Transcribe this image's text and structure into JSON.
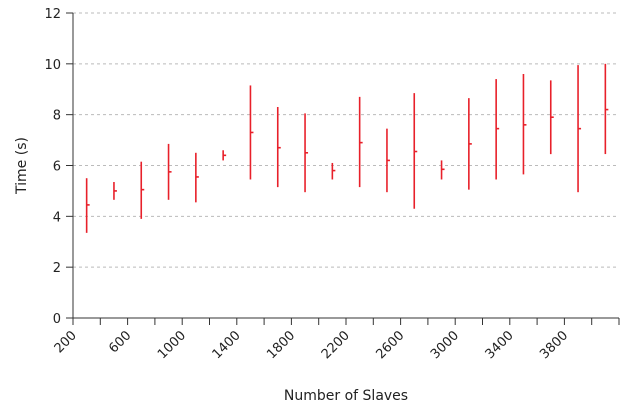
{
  "chart_data": {
    "type": "range",
    "xlabel": "Number of Slaves",
    "ylabel": "Time (s)",
    "x_tick_labels": [
      "200",
      "600",
      "1000",
      "1400",
      "1800",
      "2200",
      "2600",
      "3000",
      "3400",
      "3800"
    ],
    "y_ticks": [
      0,
      2,
      4,
      6,
      8,
      10,
      12
    ],
    "ylim": [
      0,
      12
    ],
    "grid": "horizontal dashed",
    "colors": {
      "series": "#e8202a",
      "axis": "#333333",
      "grid": "#bbbbbb"
    },
    "series": [
      {
        "values": [
          {
            "x": 300,
            "min": 3.35,
            "max": 5.5,
            "mid": 4.45
          },
          {
            "x": 500,
            "min": 4.65,
            "max": 5.35,
            "mid": 5.0
          },
          {
            "x": 700,
            "min": 3.9,
            "max": 6.15,
            "mid": 5.05
          },
          {
            "x": 900,
            "min": 4.65,
            "max": 6.85,
            "mid": 5.75
          },
          {
            "x": 1100,
            "min": 4.55,
            "max": 6.5,
            "mid": 5.55
          },
          {
            "x": 1300,
            "min": 6.2,
            "max": 6.6,
            "mid": 6.4
          },
          {
            "x": 1500,
            "min": 5.45,
            "max": 9.15,
            "mid": 7.3
          },
          {
            "x": 1700,
            "min": 5.15,
            "max": 8.3,
            "mid": 6.7
          },
          {
            "x": 1900,
            "min": 4.95,
            "max": 8.05,
            "mid": 6.5
          },
          {
            "x": 2100,
            "min": 5.45,
            "max": 6.1,
            "mid": 5.8
          },
          {
            "x": 2300,
            "min": 5.15,
            "max": 8.7,
            "mid": 6.9
          },
          {
            "x": 2500,
            "min": 4.95,
            "max": 7.45,
            "mid": 6.2
          },
          {
            "x": 2700,
            "min": 4.3,
            "max": 8.85,
            "mid": 6.55
          },
          {
            "x": 2900,
            "min": 5.45,
            "max": 6.2,
            "mid": 5.85
          },
          {
            "x": 3100,
            "min": 5.05,
            "max": 8.65,
            "mid": 6.85
          },
          {
            "x": 3300,
            "min": 5.45,
            "max": 9.4,
            "mid": 7.45
          },
          {
            "x": 3500,
            "min": 5.65,
            "max": 9.6,
            "mid": 7.6
          },
          {
            "x": 3700,
            "min": 6.45,
            "max": 9.35,
            "mid": 7.9
          },
          {
            "x": 3900,
            "min": 4.95,
            "max": 9.95,
            "mid": 7.45
          },
          {
            "x": 4100,
            "min": 6.45,
            "max": 10.0,
            "mid": 8.2
          }
        ]
      }
    ]
  }
}
